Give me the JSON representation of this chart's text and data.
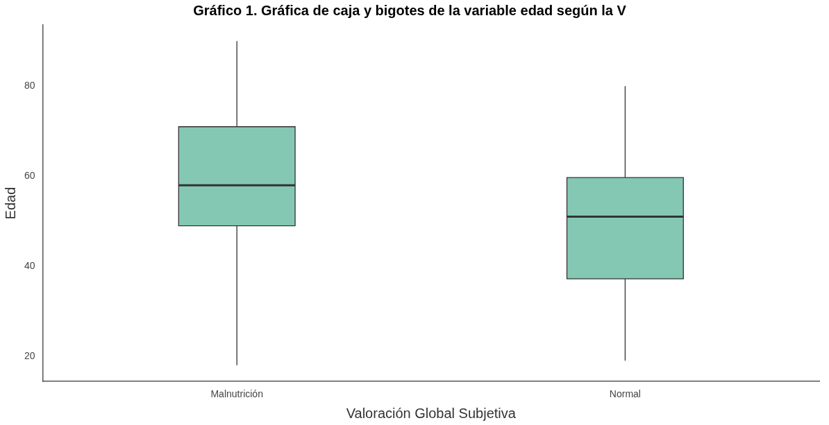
{
  "chart_data": {
    "type": "box",
    "title": "Gráfico 1. Gráfica de caja y bigotes de la variable edad según la V",
    "xlabel": "Valoración Global Subjetiva",
    "ylabel": "Edad",
    "categories": [
      "Malnutrición",
      "Normal"
    ],
    "color": "#84c8b3",
    "boxes": [
      {
        "low": 18,
        "q1": 49,
        "median": 58,
        "q3": 71,
        "high": 90
      },
      {
        "low": 19,
        "q1": 37.2,
        "median": 51,
        "q3": 59.7,
        "high": 80
      }
    ],
    "ylim": [
      14.4,
      93.6
    ],
    "yticks": [
      20,
      40,
      60,
      80
    ],
    "grid": false,
    "legend": false
  }
}
